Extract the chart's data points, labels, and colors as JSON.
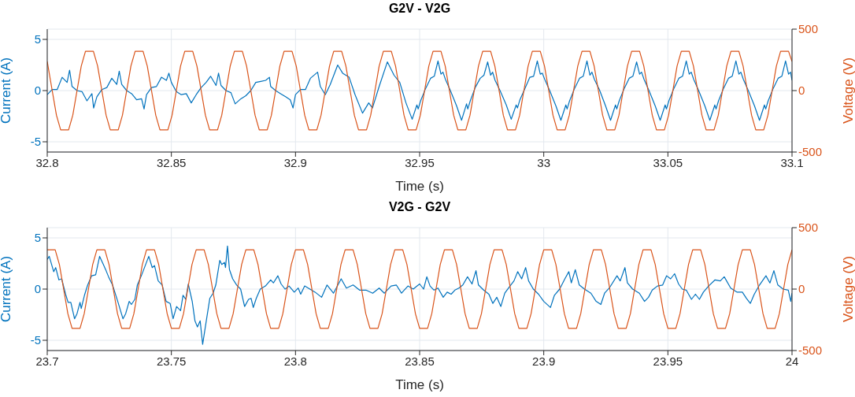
{
  "chart_data": [
    {
      "type": "line",
      "title": "G2V - V2G",
      "xlabel": "Time (s)",
      "ylabel": "Current (A)",
      "y2label": "Voltage (V)",
      "xlim": [
        32.8,
        33.1
      ],
      "xticks": [
        32.8,
        32.85,
        32.9,
        32.95,
        33,
        33.05,
        33.1
      ],
      "ylim": [
        -6,
        6
      ],
      "yticks": [
        -5,
        0,
        5
      ],
      "y2lim": [
        -500,
        500
      ],
      "y2ticks": [
        -500,
        0,
        500
      ],
      "grid": true,
      "series": [
        {
          "color": "#0072bd",
          "x": [
            32.8,
            32.802,
            32.804,
            32.806,
            32.808,
            32.809,
            32.81,
            32.812,
            32.814,
            32.816,
            32.818,
            32.8187,
            32.82,
            32.822,
            32.824,
            32.826,
            32.828,
            32.829,
            32.83,
            32.832,
            32.834,
            32.836,
            32.838,
            32.839,
            32.84,
            32.842,
            32.844,
            32.846,
            32.848,
            32.849,
            32.85,
            32.852,
            32.854,
            32.856,
            32.858,
            32.86,
            32.862,
            32.864,
            32.8658,
            32.868,
            32.869,
            32.87,
            32.872,
            32.874,
            32.8757,
            32.878,
            32.88,
            32.882,
            32.884,
            32.886,
            32.888,
            32.8895,
            32.89,
            32.892,
            32.894,
            32.896,
            32.8979,
            32.899,
            32.9,
            32.902,
            32.904,
            32.906,
            32.9089,
            32.91,
            32.912,
            32.914,
            32.917,
            32.919,
            32.9216,
            32.924,
            32.927,
            32.9295,
            32.931,
            32.9337,
            32.937,
            32.9397,
            32.942,
            32.9445,
            32.947,
            32.9489,
            32.9494,
            32.9504,
            32.9524,
            32.9544,
            32.9559,
            32.9574,
            32.9586,
            32.9594,
            32.9604,
            32.9624,
            32.9649,
            32.9669,
            32.9689,
            32.9694,
            32.9704,
            32.9724,
            32.9744,
            32.9759,
            32.9774,
            32.9786,
            32.9794,
            32.9804,
            32.9824,
            32.9849,
            32.9869,
            32.9889,
            32.9894,
            32.9904,
            32.9924,
            32.9944,
            32.9959,
            32.9974,
            32.9986,
            32.9994,
            33.0004,
            33.0024,
            33.0049,
            33.0069,
            33.0089,
            33.0094,
            33.0104,
            33.0124,
            33.0144,
            33.0159,
            33.0174,
            33.0186,
            33.0194,
            33.0204,
            33.0224,
            33.0249,
            33.0269,
            33.0289,
            33.0294,
            33.0304,
            33.0324,
            33.0344,
            33.0359,
            33.0374,
            33.0386,
            33.0394,
            33.0404,
            33.0424,
            33.0449,
            33.0469,
            33.0489,
            33.0494,
            33.0504,
            33.0524,
            33.0544,
            33.0559,
            33.0574,
            33.0586,
            33.0594,
            33.0604,
            33.0624,
            33.0649,
            33.0669,
            33.0689,
            33.0694,
            33.0704,
            33.0724,
            33.0744,
            33.0759,
            33.0774,
            33.0786,
            33.0794,
            33.0804,
            33.0824,
            33.0849,
            33.0869,
            33.0889,
            33.0894,
            33.0904,
            33.0924,
            33.0944,
            33.0959,
            33.0974,
            33.0986,
            33.0994,
            33.1
          ],
          "values": [
            -0.4,
            0.1,
            0.1,
            1.3,
            0.8,
            2.0,
            0.4,
            0,
            -0.1,
            -1.0,
            -0.3,
            -1.7,
            -0.6,
            0.1,
            0.3,
            1.2,
            0.6,
            1.9,
            0.6,
            0,
            -0.3,
            -0.9,
            -0.8,
            -1.8,
            -0.4,
            0.3,
            0.4,
            1.3,
            1.0,
            1.7,
            0.8,
            -0.1,
            -0.4,
            -0.3,
            -1.2,
            -0.4,
            0.3,
            0.8,
            1.4,
            0.5,
            1.7,
            0.5,
            0,
            -0.2,
            -1.3,
            -0.8,
            -0.5,
            0,
            0.8,
            0.9,
            1.0,
            1.3,
            0.4,
            0,
            -0.3,
            -0.6,
            -0.9,
            -1.7,
            -0.4,
            0.1,
            0.1,
            1.2,
            1.8,
            0.4,
            -0.4,
            0.6,
            2.5,
            1.7,
            1.3,
            -0.4,
            -2.2,
            -1.2,
            -1.7,
            0.4,
            2.8,
            1.5,
            0.8,
            -1.2,
            -2.8,
            -1.4,
            -1.8,
            -1.0,
            0.2,
            1.2,
            1.4,
            2.9,
            1.6,
            1.8,
            1.1,
            0,
            -1.5,
            -2.9,
            -1.3,
            -1.8,
            -1.0,
            0.3,
            1.2,
            1.5,
            2.8,
            1.5,
            1.8,
            1.0,
            0,
            -1.4,
            -2.8,
            -1.4,
            -1.7,
            -0.9,
            0.2,
            1.3,
            1.4,
            2.9,
            1.6,
            1.7,
            1.1,
            0,
            -1.5,
            -2.9,
            -1.4,
            -1.8,
            -1.0,
            0.2,
            1.2,
            1.4,
            2.9,
            1.5,
            1.8,
            1.1,
            0.1,
            -1.5,
            -2.9,
            -1.4,
            -1.8,
            -1.0,
            0.2,
            1.2,
            1.4,
            2.8,
            1.6,
            1.8,
            1.1,
            0,
            -1.5,
            -2.9,
            -1.4,
            -1.8,
            -1.0,
            0.2,
            1.2,
            1.4,
            2.9,
            1.6,
            1.8,
            1.1,
            0,
            -1.5,
            -2.9,
            -1.4,
            -1.8,
            -1.0,
            0.2,
            1.2,
            1.4,
            2.9,
            1.6,
            1.8,
            1.1,
            0,
            -1.5,
            -2.9,
            -1.4,
            -1.8,
            -1.0,
            0.2,
            1.2,
            1.4,
            2.9,
            1.6,
            1.8,
            1.0
          ]
        },
        {
          "color": "#d95319",
          "axis": "y2",
          "x": [
            32.8,
            32.802,
            32.8037,
            32.8054,
            32.8086,
            32.8103,
            32.812,
            32.8137,
            32.8154,
            32.8186,
            32.8203,
            32.822,
            32.8237,
            32.8254,
            32.8286,
            32.8303,
            32.832,
            32.8337,
            32.8354,
            32.8386,
            32.8403,
            32.842,
            32.8437,
            32.8454,
            32.8486,
            32.8503,
            32.852,
            32.8537,
            32.8554,
            32.8586,
            32.8603,
            32.862,
            32.8637,
            32.8654,
            32.8686,
            32.8703,
            32.872,
            32.8737,
            32.8754,
            32.8786,
            32.8803,
            32.882,
            32.8837,
            32.8854,
            32.8886,
            32.8903,
            32.892,
            32.8937,
            32.8954,
            32.8986,
            32.9003,
            32.902,
            32.9037,
            32.9054,
            32.9086,
            32.9103,
            32.912,
            32.9137,
            32.9154,
            32.9186,
            32.9203,
            32.922,
            32.9237,
            32.9254,
            32.9286,
            32.9303,
            32.932,
            32.9337,
            32.9354,
            32.9386,
            32.9403,
            32.942,
            32.9437,
            32.9454,
            32.9486,
            32.9503,
            32.952,
            32.9537,
            32.9554,
            32.9586,
            32.9603,
            32.962,
            32.9637,
            32.9654,
            32.9686,
            32.9703,
            32.972,
            32.9737,
            32.9754,
            32.9786,
            32.9803,
            32.982,
            32.9837,
            32.9854,
            32.9886,
            32.9903,
            32.992,
            32.9937,
            32.9954,
            32.9986,
            33.0003,
            33.002,
            33.0037,
            33.0054,
            33.0086,
            33.0103,
            33.012,
            33.0137,
            33.0154,
            33.0186,
            33.0203,
            33.022,
            33.0237,
            33.0254,
            33.0286,
            33.0303,
            33.032,
            33.0337,
            33.0354,
            33.0386,
            33.0403,
            33.042,
            33.0437,
            33.0454,
            33.0486,
            33.0503,
            33.052,
            33.0537,
            33.0554,
            33.0586,
            33.0603,
            33.062,
            33.0637,
            33.0654,
            33.0686,
            33.0703,
            33.072,
            33.0737,
            33.0754,
            33.0786,
            33.0803,
            33.082,
            33.0837,
            33.0854,
            33.0886,
            33.0903,
            33.092,
            33.0937,
            33.0954,
            33.0986,
            33.1
          ],
          "values": [
            237,
            0,
            -200,
            -320,
            -320,
            -200,
            0,
            200,
            320,
            320,
            200,
            0,
            -200,
            -320,
            -320,
            -200,
            0,
            200,
            320,
            320,
            200,
            0,
            -200,
            -320,
            -320,
            -200,
            0,
            200,
            320,
            320,
            200,
            0,
            -200,
            -320,
            -320,
            -200,
            0,
            200,
            320,
            320,
            200,
            0,
            -200,
            -320,
            -320,
            -200,
            0,
            200,
            320,
            320,
            200,
            0,
            -200,
            -320,
            -320,
            -200,
            0,
            200,
            320,
            320,
            200,
            0,
            -200,
            -320,
            -320,
            -200,
            0,
            200,
            320,
            320,
            200,
            0,
            -200,
            -320,
            -320,
            -200,
            0,
            200,
            320,
            320,
            200,
            0,
            -200,
            -320,
            -320,
            -200,
            0,
            200,
            320,
            320,
            200,
            0,
            -200,
            -320,
            -320,
            -200,
            0,
            200,
            320,
            320,
            200,
            0,
            -200,
            -320,
            -320,
            -200,
            0,
            200,
            320,
            320,
            200,
            0,
            -200,
            -320,
            -320,
            -200,
            0,
            200,
            320,
            320,
            200,
            0,
            -200,
            -320,
            -320,
            -200,
            0,
            200,
            320,
            320,
            200,
            0,
            -200,
            -320,
            -320,
            -200,
            0,
            200,
            320,
            320,
            200,
            0,
            -200,
            -320,
            -320,
            -200,
            0,
            200,
            320,
            320,
            237
          ]
        }
      ]
    },
    {
      "type": "line",
      "title": "V2G - G2V",
      "xlabel": "Time (s)",
      "ylabel": "Current (A)",
      "y2label": "Voltage (V)",
      "xlim": [
        23.7,
        24
      ],
      "xticks": [
        23.7,
        23.75,
        23.8,
        23.85,
        23.9,
        23.95,
        24
      ],
      "ylim": [
        -6,
        6
      ],
      "yticks": [
        -5,
        0,
        5
      ],
      "y2lim": [
        -500,
        500
      ],
      "y2ticks": [
        -500,
        0,
        500
      ],
      "grid": true,
      "series": [
        {
          "color": "#0072bd",
          "x": [
            23.7,
            23.7008,
            23.7026,
            23.7034,
            23.7047,
            23.7058,
            23.7074,
            23.7084,
            23.7095,
            23.711,
            23.712,
            23.7132,
            23.7137,
            23.715,
            23.7163,
            23.7179,
            23.7195,
            23.7211,
            23.7226,
            23.7237,
            23.7247,
            23.7263,
            23.7284,
            23.7305,
            23.7316,
            23.733,
            23.7339,
            23.7353,
            23.7363,
            23.7379,
            23.7409,
            23.7423,
            23.7432,
            23.7447,
            23.7463,
            23.7479,
            23.7495,
            23.7507,
            23.7521,
            23.7537,
            23.7547,
            23.7558,
            23.7568,
            23.7584,
            23.7595,
            23.7605,
            23.7616,
            23.7626,
            23.7642,
            23.7655,
            23.7668,
            23.7679,
            23.7695,
            23.7703,
            23.7714,
            23.7718,
            23.7726,
            23.7734,
            23.7747,
            23.7763,
            23.7779,
            23.7795,
            23.7811,
            23.7821,
            23.783,
            23.7842,
            23.7858,
            23.7879,
            23.79,
            23.7911,
            23.7929,
            23.7942,
            23.7958,
            23.7974,
            23.7995,
            23.8011,
            23.8021,
            23.8037,
            23.8058,
            23.8079,
            23.8105,
            23.8127,
            23.8153,
            23.8184,
            23.8205,
            23.8232,
            23.8258,
            23.8284,
            23.8311,
            23.8337,
            23.8358,
            23.8385,
            23.8406,
            23.8427,
            23.8453,
            23.8474,
            23.85,
            23.8516,
            23.8529,
            23.8542,
            23.8558,
            23.8574,
            23.8595,
            23.8611,
            23.8627,
            23.8642,
            23.8658,
            23.8674,
            23.8693,
            23.8711,
            23.8727,
            23.8737,
            23.8758,
            23.8779,
            23.8795,
            23.8811,
            23.8827,
            23.8843,
            23.8864,
            23.888,
            23.8895,
            23.8911,
            23.8927,
            23.8939,
            23.8958,
            23.8979,
            23.9,
            23.9027,
            23.9043,
            23.9064,
            23.9085,
            23.9101,
            23.9111,
            23.9127,
            23.9143,
            23.9164,
            23.919,
            23.9211,
            23.923,
            23.9245,
            23.9264,
            23.9295,
            23.9308,
            23.9327,
            23.9337,
            23.9358,
            23.9385,
            23.9406,
            23.9422,
            23.9437,
            23.9458,
            23.9479,
            23.9495,
            23.9511,
            23.9527,
            23.9543,
            23.9558,
            23.9574,
            23.9595,
            23.9611,
            23.9627,
            23.9643,
            23.9664,
            23.969,
            23.9711,
            23.9727,
            23.9753,
            23.9779,
            23.98,
            23.9816,
            23.9832,
            23.9848,
            23.9869,
            23.9895,
            23.9911,
            23.9927,
            23.9943,
            23.9964,
            23.9985,
            23.9995,
            24
          ],
          "values": [
            2.9,
            3.2,
            1.7,
            2.1,
            0.9,
            1.0,
            -0.5,
            -1.3,
            -1.3,
            -2.9,
            -2.4,
            -1.3,
            -1.9,
            -0.6,
            0.4,
            1.3,
            1.4,
            3.2,
            2.4,
            1.8,
            1.2,
            0.4,
            -1.2,
            -2.9,
            -2.4,
            -1.2,
            -1.5,
            -1.0,
            0.4,
            1.3,
            3.2,
            2.1,
            2.3,
            0.8,
            0.4,
            -1.2,
            -1.4,
            -2.9,
            -1.7,
            -2.1,
            -0.6,
            -1.0,
            0.5,
            -1.2,
            -3.1,
            -3.7,
            -3.1,
            -5.4,
            -2.9,
            -0.9,
            -0.4,
            0.4,
            2.8,
            2.4,
            2.6,
            2.1,
            4.2,
            1.9,
            1.0,
            0.4,
            0,
            -1.7,
            -1.0,
            -0.9,
            -1.8,
            -0.9,
            0,
            0.3,
            0.9,
            0.6,
            1.3,
            0.5,
            0,
            0.3,
            -0.3,
            0.1,
            -0.5,
            0.3,
            0,
            -0.3,
            -0.8,
            0.4,
            -0.4,
            1.0,
            0.1,
            0.4,
            -0.1,
            -0.1,
            -0.4,
            0.1,
            -0.4,
            0.3,
            0.4,
            -0.4,
            0.3,
            0,
            0.5,
            0,
            1.2,
            0.3,
            -0.1,
            0.1,
            -0.8,
            -0.3,
            -0.5,
            -0.1,
            0.1,
            0.4,
            1.2,
            0.5,
            1.8,
            0.4,
            -0.1,
            -0.5,
            -1.4,
            -0.8,
            -1.7,
            -0.4,
            0.3,
            0.8,
            1.7,
            1.0,
            2.1,
            0.8,
            0,
            -0.5,
            -1.2,
            -1.8,
            -0.6,
            0,
            1.0,
            1.7,
            0.6,
            1.9,
            0.4,
            0,
            -0.4,
            -1.2,
            -1.5,
            -0.4,
            0.1,
            1.3,
            0.8,
            2.1,
            0.6,
            0,
            -0.4,
            -1.2,
            -0.8,
            -0.1,
            0.3,
            0.4,
            1.3,
            1.0,
            1.5,
            0.5,
            0,
            -0.1,
            -1.0,
            -0.5,
            -1.0,
            -0.3,
            0.3,
            0.9,
            0.8,
            1.2,
            0.1,
            -0.3,
            -0.3,
            -0.9,
            -1.4,
            -0.5,
            0.4,
            1.3,
            0.6,
            1.8,
            0.4,
            0,
            -0.1,
            -1.2,
            -0.4
          ]
        },
        {
          "color": "#d95319",
          "axis": "y2",
          "x": [
            23.7,
            23.7032,
            23.7049,
            23.7066,
            23.7083,
            23.71,
            23.7132,
            23.7149,
            23.7166,
            23.7183,
            23.72,
            23.7232,
            23.7249,
            23.7266,
            23.7283,
            23.73,
            23.7332,
            23.7349,
            23.7366,
            23.7383,
            23.74,
            23.7432,
            23.7449,
            23.7466,
            23.7483,
            23.75,
            23.7532,
            23.7549,
            23.7566,
            23.7583,
            23.76,
            23.7632,
            23.7649,
            23.7666,
            23.7683,
            23.77,
            23.7732,
            23.7749,
            23.7766,
            23.7783,
            23.78,
            23.7832,
            23.7849,
            23.7866,
            23.7883,
            23.79,
            23.7932,
            23.7949,
            23.7966,
            23.7983,
            23.8,
            23.8032,
            23.8049,
            23.8066,
            23.8083,
            23.81,
            23.8132,
            23.8149,
            23.8166,
            23.8183,
            23.82,
            23.8232,
            23.8249,
            23.8266,
            23.8283,
            23.83,
            23.8332,
            23.8349,
            23.8366,
            23.8383,
            23.84,
            23.8432,
            23.8449,
            23.8466,
            23.8483,
            23.85,
            23.8532,
            23.8549,
            23.8566,
            23.8583,
            23.86,
            23.8632,
            23.8649,
            23.8666,
            23.8683,
            23.87,
            23.8732,
            23.8749,
            23.8766,
            23.8783,
            23.88,
            23.8832,
            23.8849,
            23.8866,
            23.8883,
            23.89,
            23.8932,
            23.8949,
            23.8966,
            23.8983,
            23.9,
            23.9032,
            23.9049,
            23.9066,
            23.9083,
            23.91,
            23.9132,
            23.9149,
            23.9166,
            23.9183,
            23.92,
            23.9232,
            23.9249,
            23.9266,
            23.9283,
            23.93,
            23.9332,
            23.9349,
            23.9366,
            23.9383,
            23.94,
            23.9432,
            23.9449,
            23.9466,
            23.9483,
            23.95,
            23.9532,
            23.9549,
            23.9566,
            23.9583,
            23.96,
            23.9632,
            23.9649,
            23.9666,
            23.9683,
            23.97,
            23.9732,
            23.9749,
            23.9766,
            23.9783,
            23.98,
            23.9832,
            23.9849,
            23.9866,
            23.9883,
            23.99,
            23.9932,
            23.9949,
            23.9966,
            23.9983,
            24
          ],
          "values": [
            320,
            320,
            200,
            0,
            -200,
            -320,
            -320,
            -200,
            0,
            200,
            320,
            320,
            200,
            0,
            -200,
            -320,
            -320,
            -200,
            0,
            200,
            320,
            320,
            200,
            0,
            -200,
            -320,
            -320,
            -200,
            0,
            200,
            320,
            320,
            200,
            0,
            -200,
            -320,
            -320,
            -200,
            0,
            200,
            320,
            320,
            200,
            0,
            -200,
            -320,
            -320,
            -200,
            0,
            200,
            320,
            320,
            200,
            0,
            -200,
            -320,
            -320,
            -200,
            0,
            200,
            320,
            320,
            200,
            0,
            -200,
            -320,
            -320,
            -200,
            0,
            200,
            320,
            320,
            200,
            0,
            -200,
            -320,
            -320,
            -200,
            0,
            200,
            320,
            320,
            200,
            0,
            -200,
            -320,
            -320,
            -200,
            0,
            200,
            320,
            320,
            200,
            0,
            -200,
            -320,
            -320,
            -200,
            0,
            200,
            320,
            320,
            200,
            0,
            -200,
            -320,
            -320,
            -200,
            0,
            200,
            320,
            320,
            200,
            0,
            -200,
            -320,
            -320,
            -200,
            0,
            200,
            320,
            320,
            200,
            0,
            -200,
            -320,
            -320,
            -200,
            0,
            200,
            320,
            320,
            200,
            0,
            -200,
            -320,
            -320,
            -200,
            0,
            200,
            320,
            320,
            200,
            0,
            -200,
            -320,
            -320,
            -200,
            0,
            200,
            320
          ]
        }
      ]
    }
  ]
}
